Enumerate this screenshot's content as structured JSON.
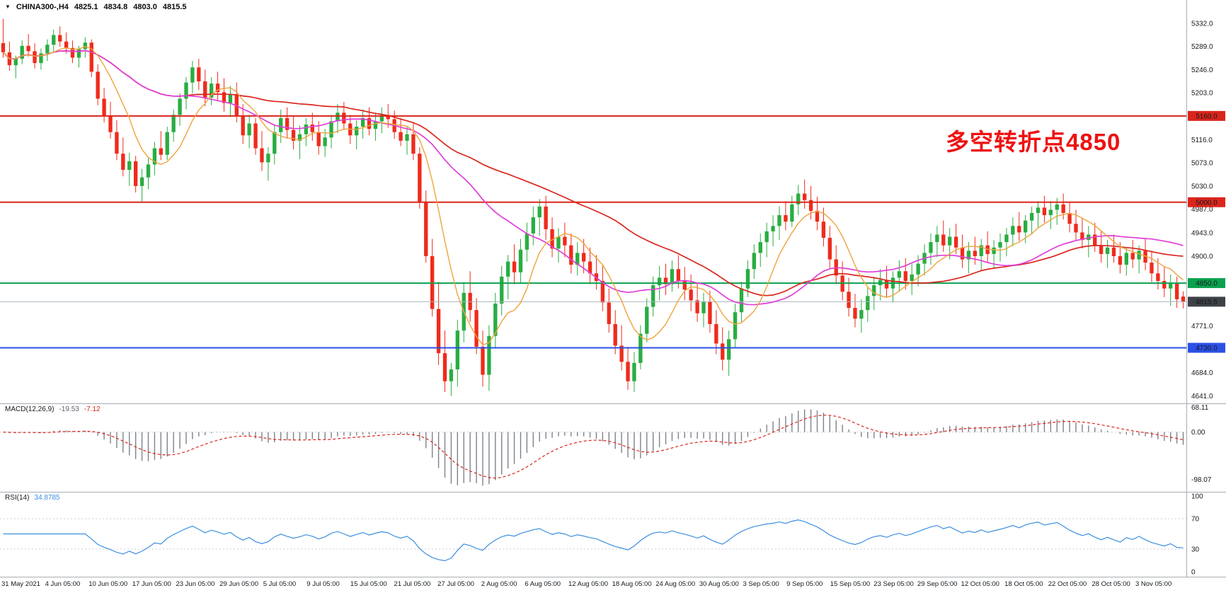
{
  "symbol_bar": {
    "expander_icon": "▼",
    "title": "CHINA300-,H4",
    "open": "4825.1",
    "high": "4834.8",
    "low": "4803.0",
    "close": "4815.5"
  },
  "annotation": {
    "text": "多空转折点4850",
    "color": "#ee1111"
  },
  "chart_data": {
    "type": "candlestick",
    "title": "CHINA300-,H4",
    "timeframe": "H4",
    "ylim": [
      4627,
      5375
    ],
    "colors": {
      "up": "#29ad42",
      "down": "#ef2b1c",
      "macd_hist": "#7d828a",
      "macd_signal": "#da251d",
      "macd_value": "#5d636b",
      "rsi_line": "#3c8ede",
      "panel_border": "#a7adb4",
      "grid_dotted": "#c9ced6",
      "tick_text": "#15181c",
      "current_price_line": "#aab4bf"
    },
    "price_ticks": [
      {
        "v": 5332,
        "label": "5332.0"
      },
      {
        "v": 5289,
        "label": "5289.0"
      },
      {
        "v": 5246,
        "label": "5246.0"
      },
      {
        "v": 5203,
        "label": "5203.0"
      },
      {
        "v": 5116,
        "label": "5116.0"
      },
      {
        "v": 5073,
        "label": "5073.0"
      },
      {
        "v": 5030,
        "label": "5030.0"
      },
      {
        "v": 4987,
        "label": "4987.0"
      },
      {
        "v": 4943,
        "label": "4943.0"
      },
      {
        "v": 4900,
        "label": "4900.0"
      },
      {
        "v": 4771,
        "label": "4771.0"
      },
      {
        "v": 4684,
        "label": "4684.0"
      },
      {
        "v": 4641,
        "label": "4641.0"
      }
    ],
    "levels": [
      {
        "v": 5160,
        "label": "5160.0",
        "badge": "#da251d",
        "line": "#da251d",
        "lw": 2
      },
      {
        "v": 5000,
        "label": "5000.0",
        "badge": "#da251d",
        "line": "#da251d",
        "lw": 2
      },
      {
        "v": 4850,
        "label": "4850.0",
        "badge": "#0ba14e",
        "line": "#0ba14e",
        "lw": 2
      },
      {
        "v": 4815.5,
        "label": "4815.5",
        "badge": "#3e4247",
        "line": "#aab4bf",
        "lw": 1
      },
      {
        "v": 4730,
        "label": "4730.0",
        "badge": "#2a50e6",
        "line": "#2a50e6",
        "lw": 2
      }
    ],
    "moving_averages": [
      {
        "period": 55,
        "color": "#da251d",
        "width": 1.7
      },
      {
        "period": 30,
        "color": "#e03fd8",
        "width": 1.7
      },
      {
        "period": 8,
        "color": "#eea43c",
        "width": 1.4
      }
    ],
    "macd": {
      "label": "MACD(12,26,9)",
      "params": [
        12,
        26,
        9
      ],
      "value_macd": "-19.53",
      "value_signal": "-7.12",
      "ticks": [
        {
          "v": 68.11,
          "label": "68.11"
        },
        {
          "v": 0,
          "label": "0.00"
        },
        {
          "v": -98.07,
          "label": "-98.07"
        }
      ]
    },
    "rsi": {
      "label": "RSI(14)",
      "period": 14,
      "value": "34.8785",
      "levels": [
        70,
        30
      ],
      "ticks": [
        {
          "v": 100,
          "label": "100"
        },
        {
          "v": 70,
          "label": "70"
        },
        {
          "v": 30,
          "label": "30"
        },
        {
          "v": 0,
          "label": "0"
        }
      ]
    },
    "x_labels": [
      "31 May 2021",
      "4 Jun 05:00",
      "10 Jun 05:00",
      "17 Jun 05:00",
      "23 Jun 05:00",
      "29 Jun 05:00",
      "5 Jul 05:00",
      "9 Jul 05:00",
      "15 Jul 05:00",
      "21 Jul 05:00",
      "27 Jul 05:00",
      "2 Aug 05:00",
      "6 Aug 05:00",
      "12 Aug 05:00",
      "18 Aug 05:00",
      "24 Aug 05:00",
      "30 Aug 05:00",
      "3 Sep 05:00",
      "9 Sep 05:00",
      "15 Sep 05:00",
      "23 Sep 05:00",
      "29 Sep 05:00",
      "12 Oct 05:00",
      "18 Oct 05:00",
      "22 Oct 05:00",
      "28 Oct 05:00",
      "3 Nov 05:00"
    ],
    "candles": [
      [
        5295,
        5340,
        5268,
        5278
      ],
      [
        5278,
        5298,
        5244,
        5254
      ],
      [
        5254,
        5272,
        5230,
        5266
      ],
      [
        5266,
        5300,
        5256,
        5290
      ],
      [
        5290,
        5312,
        5270,
        5280
      ],
      [
        5280,
        5295,
        5248,
        5258
      ],
      [
        5258,
        5285,
        5246,
        5276
      ],
      [
        5276,
        5302,
        5262,
        5292
      ],
      [
        5292,
        5320,
        5280,
        5310
      ],
      [
        5310,
        5326,
        5288,
        5298
      ],
      [
        5298,
        5315,
        5276,
        5286
      ],
      [
        5286,
        5300,
        5258,
        5268
      ],
      [
        5268,
        5290,
        5250,
        5284
      ],
      [
        5284,
        5306,
        5268,
        5296
      ],
      [
        5296,
        5302,
        5232,
        5242
      ],
      [
        5242,
        5256,
        5180,
        5192
      ],
      [
        5192,
        5212,
        5148,
        5160
      ],
      [
        5160,
        5186,
        5118,
        5130
      ],
      [
        5130,
        5152,
        5078,
        5090
      ],
      [
        5090,
        5120,
        5048,
        5060
      ],
      [
        5060,
        5092,
        5030,
        5076
      ],
      [
        5076,
        5086,
        5018,
        5030
      ],
      [
        5030,
        5062,
        5000,
        5046
      ],
      [
        5046,
        5082,
        5024,
        5070
      ],
      [
        5070,
        5112,
        5050,
        5100
      ],
      [
        5100,
        5132,
        5078,
        5088
      ],
      [
        5088,
        5140,
        5078,
        5130
      ],
      [
        5130,
        5172,
        5112,
        5162
      ],
      [
        5162,
        5202,
        5142,
        5192
      ],
      [
        5192,
        5232,
        5172,
        5222
      ],
      [
        5222,
        5262,
        5202,
        5250
      ],
      [
        5250,
        5266,
        5208,
        5224
      ],
      [
        5224,
        5246,
        5178,
        5194
      ],
      [
        5194,
        5232,
        5180,
        5220
      ],
      [
        5220,
        5242,
        5188,
        5204
      ],
      [
        5204,
        5230,
        5168,
        5184
      ],
      [
        5184,
        5216,
        5158,
        5200
      ],
      [
        5200,
        5222,
        5148,
        5160
      ],
      [
        5160,
        5182,
        5108,
        5124
      ],
      [
        5124,
        5162,
        5100,
        5146
      ],
      [
        5146,
        5156,
        5088,
        5100
      ],
      [
        5100,
        5132,
        5058,
        5074
      ],
      [
        5074,
        5102,
        5040,
        5090
      ],
      [
        5090,
        5142,
        5070,
        5130
      ],
      [
        5130,
        5172,
        5110,
        5156
      ],
      [
        5156,
        5176,
        5118,
        5134
      ],
      [
        5134,
        5160,
        5098,
        5114
      ],
      [
        5114,
        5142,
        5080,
        5126
      ],
      [
        5126,
        5156,
        5104,
        5144
      ],
      [
        5144,
        5166,
        5114,
        5130
      ],
      [
        5130,
        5150,
        5088,
        5104
      ],
      [
        5104,
        5136,
        5084,
        5120
      ],
      [
        5120,
        5162,
        5100,
        5150
      ],
      [
        5150,
        5182,
        5128,
        5166
      ],
      [
        5166,
        5186,
        5134,
        5146
      ],
      [
        5146,
        5162,
        5108,
        5124
      ],
      [
        5124,
        5152,
        5098,
        5140
      ],
      [
        5140,
        5172,
        5118,
        5156
      ],
      [
        5156,
        5176,
        5124,
        5136
      ],
      [
        5136,
        5166,
        5114,
        5150
      ],
      [
        5150,
        5176,
        5128,
        5162
      ],
      [
        5162,
        5182,
        5138,
        5154
      ],
      [
        5154,
        5170,
        5118,
        5130
      ],
      [
        5130,
        5156,
        5104,
        5114
      ],
      [
        5114,
        5140,
        5088,
        5126
      ],
      [
        5126,
        5146,
        5078,
        5090
      ],
      [
        5090,
        5102,
        4988,
        5000
      ],
      [
        5000,
        5022,
        4888,
        4900
      ],
      [
        4900,
        4932,
        4788,
        4802
      ],
      [
        4802,
        4852,
        4698,
        4720
      ],
      [
        4720,
        4762,
        4648,
        4668
      ],
      [
        4668,
        4702,
        4641,
        4690
      ],
      [
        4690,
        4782,
        4658,
        4762
      ],
      [
        4762,
        4852,
        4740,
        4832
      ],
      [
        4832,
        4872,
        4778,
        4800
      ],
      [
        4800,
        4822,
        4718,
        4732
      ],
      [
        4732,
        4762,
        4658,
        4680
      ],
      [
        4680,
        4772,
        4650,
        4752
      ],
      [
        4752,
        4832,
        4730,
        4812
      ],
      [
        4812,
        4882,
        4790,
        4862
      ],
      [
        4862,
        4902,
        4820,
        4890
      ],
      [
        4890,
        4922,
        4848,
        4870
      ],
      [
        4870,
        4932,
        4850,
        4912
      ],
      [
        4912,
        4962,
        4890,
        4942
      ],
      [
        4942,
        4992,
        4920,
        4972
      ],
      [
        4972,
        5006,
        4938,
        4992
      ],
      [
        4992,
        5012,
        4930,
        4950
      ],
      [
        4950,
        4972,
        4898,
        4914
      ],
      [
        4914,
        4952,
        4888,
        4936
      ],
      [
        4936,
        4962,
        4898,
        4920
      ],
      [
        4920,
        4942,
        4868,
        4884
      ],
      [
        4884,
        4926,
        4864,
        4906
      ],
      [
        4906,
        4932,
        4868,
        4890
      ],
      [
        4890,
        4916,
        4848,
        4868
      ],
      [
        4868,
        4902,
        4838,
        4854
      ],
      [
        4854,
        4882,
        4798,
        4814
      ],
      [
        4814,
        4840,
        4758,
        4774
      ],
      [
        4774,
        4800,
        4718,
        4734
      ],
      [
        4734,
        4772,
        4688,
        4704
      ],
      [
        4704,
        4732,
        4652,
        4668
      ],
      [
        4668,
        4722,
        4648,
        4702
      ],
      [
        4702,
        4772,
        4690,
        4756
      ],
      [
        4756,
        4822,
        4740,
        4806
      ],
      [
        4806,
        4862,
        4788,
        4846
      ],
      [
        4846,
        4882,
        4818,
        4860
      ],
      [
        4860,
        4886,
        4828,
        4848
      ],
      [
        4848,
        4892,
        4834,
        4876
      ],
      [
        4876,
        4902,
        4840,
        4854
      ],
      [
        4854,
        4880,
        4818,
        4838
      ],
      [
        4838,
        4866,
        4798,
        4818
      ],
      [
        4818,
        4850,
        4778,
        4794
      ],
      [
        4794,
        4832,
        4768,
        4816
      ],
      [
        4816,
        4836,
        4758,
        4774
      ],
      [
        4774,
        4800,
        4718,
        4738
      ],
      [
        4738,
        4768,
        4688,
        4708
      ],
      [
        4708,
        4762,
        4678,
        4746
      ],
      [
        4746,
        4812,
        4730,
        4796
      ],
      [
        4796,
        4852,
        4778,
        4840
      ],
      [
        4840,
        4892,
        4824,
        4876
      ],
      [
        4876,
        4922,
        4858,
        4906
      ],
      [
        4906,
        4942,
        4880,
        4926
      ],
      [
        4926,
        4962,
        4898,
        4946
      ],
      [
        4946,
        4976,
        4918,
        4956
      ],
      [
        4956,
        4992,
        4930,
        4976
      ],
      [
        4976,
        5002,
        4948,
        4964
      ],
      [
        4964,
        5012,
        4954,
        4996
      ],
      [
        4996,
        5032,
        4976,
        5016
      ],
      [
        5016,
        5042,
        4988,
        5004
      ],
      [
        5004,
        5030,
        4968,
        4984
      ],
      [
        4984,
        5010,
        4948,
        4964
      ],
      [
        4964,
        4990,
        4918,
        4934
      ],
      [
        4934,
        4956,
        4878,
        4894
      ],
      [
        4894,
        4920,
        4848,
        4864
      ],
      [
        4864,
        4890,
        4818,
        4834
      ],
      [
        4834,
        4860,
        4788,
        4804
      ],
      [
        4804,
        4830,
        4768,
        4784
      ],
      [
        4784,
        4820,
        4758,
        4800
      ],
      [
        4800,
        4842,
        4778,
        4826
      ],
      [
        4826,
        4862,
        4800,
        4846
      ],
      [
        4846,
        4876,
        4818,
        4856
      ],
      [
        4856,
        4882,
        4824,
        4840
      ],
      [
        4840,
        4872,
        4814,
        4860
      ],
      [
        4860,
        4892,
        4834,
        4872
      ],
      [
        4872,
        4896,
        4838,
        4854
      ],
      [
        4854,
        4886,
        4828,
        4866
      ],
      [
        4866,
        4902,
        4844,
        4886
      ],
      [
        4886,
        4922,
        4864,
        4906
      ],
      [
        4906,
        4942,
        4884,
        4926
      ],
      [
        4926,
        4956,
        4898,
        4940
      ],
      [
        4940,
        4966,
        4908,
        4920
      ],
      [
        4920,
        4952,
        4894,
        4936
      ],
      [
        4936,
        4960,
        4904,
        4916
      ],
      [
        4916,
        4940,
        4878,
        4894
      ],
      [
        4894,
        4926,
        4868,
        4910
      ],
      [
        4910,
        4936,
        4884,
        4900
      ],
      [
        4900,
        4932,
        4874,
        4920
      ],
      [
        4920,
        4946,
        4888,
        4904
      ],
      [
        4904,
        4930,
        4878,
        4916
      ],
      [
        4916,
        4942,
        4890,
        4926
      ],
      [
        4926,
        4952,
        4900,
        4940
      ],
      [
        4940,
        4972,
        4918,
        4956
      ],
      [
        4956,
        4982,
        4928,
        4944
      ],
      [
        4944,
        4976,
        4924,
        4966
      ],
      [
        4966,
        4992,
        4940,
        4980
      ],
      [
        4980,
        5002,
        4954,
        4990
      ],
      [
        4990,
        5012,
        4962,
        4976
      ],
      [
        4976,
        5002,
        4950,
        4986
      ],
      [
        4986,
        5008,
        4958,
        4996
      ],
      [
        4996,
        5016,
        4968,
        4980
      ],
      [
        4980,
        5000,
        4944,
        4960
      ],
      [
        4960,
        4986,
        4928,
        4944
      ],
      [
        4944,
        4970,
        4914,
        4930
      ],
      [
        4930,
        4956,
        4898,
        4940
      ],
      [
        4940,
        4962,
        4908,
        4920
      ],
      [
        4920,
        4946,
        4888,
        4904
      ],
      [
        4904,
        4930,
        4878,
        4916
      ],
      [
        4916,
        4940,
        4888,
        4900
      ],
      [
        4900,
        4926,
        4868,
        4884
      ],
      [
        4884,
        4916,
        4864,
        4906
      ],
      [
        4906,
        4930,
        4878,
        4894
      ],
      [
        4894,
        4920,
        4868,
        4910
      ],
      [
        4910,
        4932,
        4874,
        4888
      ],
      [
        4888,
        4910,
        4852,
        4868
      ],
      [
        4868,
        4896,
        4838,
        4854
      ],
      [
        4854,
        4880,
        4824,
        4840
      ],
      [
        4840,
        4866,
        4808,
        4850
      ],
      [
        4850,
        4862,
        4804,
        4820
      ],
      [
        4825.1,
        4834.8,
        4803,
        4815.5
      ]
    ]
  }
}
